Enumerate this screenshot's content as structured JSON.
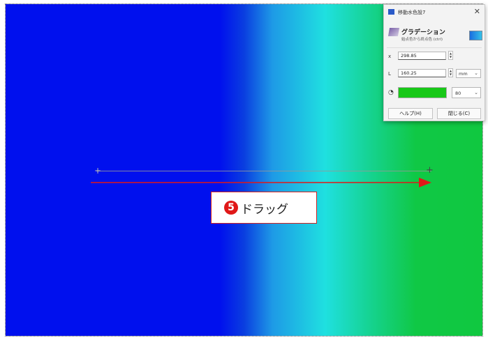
{
  "panel": {
    "title": "移動水色設7",
    "tool_name": "グラデーション",
    "tool_desc": "始点色から終点色 (ctrl)",
    "fields": [
      {
        "label": "x",
        "value": "298.85"
      },
      {
        "label": "L",
        "value": "160.25"
      }
    ],
    "unit": "mm",
    "opacity": "80",
    "help_label": "ヘルプ(H)",
    "close_label": "閉じる(C)"
  },
  "callout": {
    "step_number": "5",
    "text": "ドラッグ"
  },
  "colors": {
    "gradient_start": "#0010ee",
    "gradient_end": "#10c840",
    "callout_red": "#e01818",
    "current_color": "#18c818"
  }
}
